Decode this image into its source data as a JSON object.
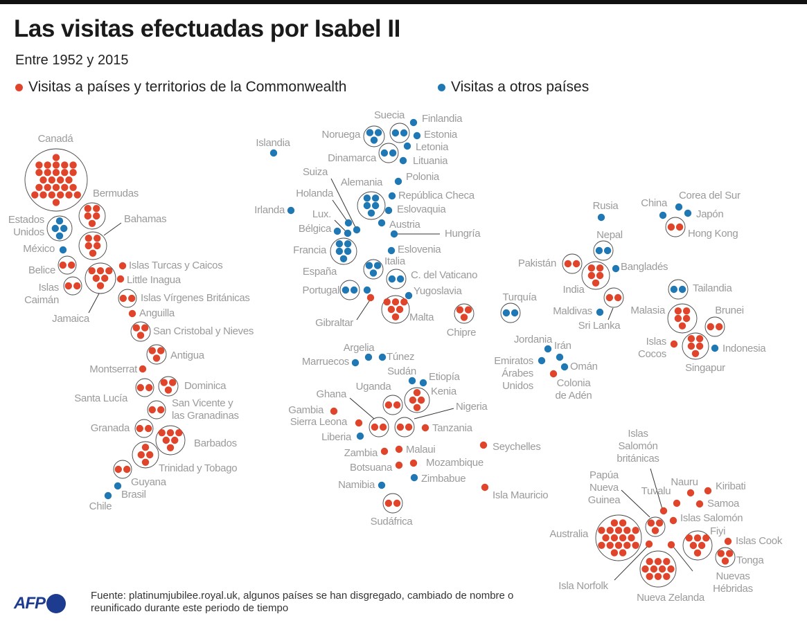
{
  "title": "Las visitas efectuadas por Isabel II",
  "subtitle": "Entre 1952 y 2015",
  "legend": {
    "commonwealth": "Visitas a países y territorios de la Commonwealth",
    "other": "Visitas a otros países"
  },
  "colors": {
    "commonwealth": "#e0452b",
    "other": "#1f78b4"
  },
  "footer": {
    "logo": "AFP",
    "source": "Fuente: platinumjubilee.royal.uk, algunos países se han disgregado, cambiado de nombre o reunificado durante este periodo de tiempo"
  },
  "countries": [
    {
      "name": "Canadá",
      "visits": 27,
      "group": "commonwealth"
    },
    {
      "name": "Bermudas",
      "visits": 5,
      "group": "commonwealth"
    },
    {
      "name": "Estados\nUnidos",
      "visits": 4,
      "group": "other"
    },
    {
      "name": "Bahamas",
      "visits": 5,
      "group": "commonwealth"
    },
    {
      "name": "México",
      "visits": 1,
      "group": "other"
    },
    {
      "name": "Belice",
      "visits": 2,
      "group": "commonwealth"
    },
    {
      "name": "Islas\nCaimán",
      "visits": 2,
      "group": "commonwealth"
    },
    {
      "name": "Jamaica",
      "visits": 6,
      "group": "commonwealth"
    },
    {
      "name": "Islas Turcas y Caicos",
      "visits": 1,
      "group": "commonwealth"
    },
    {
      "name": "Little Inagua",
      "visits": 1,
      "group": "commonwealth"
    },
    {
      "name": "Islas Vírgenes Británicas",
      "visits": 2,
      "group": "commonwealth"
    },
    {
      "name": "Anguilla",
      "visits": 1,
      "group": "commonwealth"
    },
    {
      "name": "San Cristobal y Nieves",
      "visits": 3,
      "group": "commonwealth"
    },
    {
      "name": "Antigua",
      "visits": 3,
      "group": "commonwealth"
    },
    {
      "name": "Montserrat",
      "visits": 1,
      "group": "commonwealth"
    },
    {
      "name": "Santa Lucía",
      "visits": 2,
      "group": "commonwealth"
    },
    {
      "name": "Dominica",
      "visits": 3,
      "group": "commonwealth"
    },
    {
      "name": "San Vicente y\nlas Granadinas",
      "visits": 2,
      "group": "commonwealth"
    },
    {
      "name": "Granada",
      "visits": 2,
      "group": "commonwealth"
    },
    {
      "name": "Barbados",
      "visits": 6,
      "group": "commonwealth"
    },
    {
      "name": "Trinidad y Tobago",
      "visits": 4,
      "group": "commonwealth"
    },
    {
      "name": "Guyana",
      "visits": 2,
      "group": "commonwealth"
    },
    {
      "name": "Brasil",
      "visits": 1,
      "group": "other"
    },
    {
      "name": "Chile",
      "visits": 1,
      "group": "other"
    },
    {
      "name": "Islandia",
      "visits": 1,
      "group": "other"
    },
    {
      "name": "Noruega",
      "visits": 3,
      "group": "other"
    },
    {
      "name": "Suecia",
      "visits": 2,
      "group": "other"
    },
    {
      "name": "Finlandia",
      "visits": 1,
      "group": "other"
    },
    {
      "name": "Estonia",
      "visits": 1,
      "group": "other"
    },
    {
      "name": "Dinamarca",
      "visits": 2,
      "group": "other"
    },
    {
      "name": "Letonia",
      "visits": 1,
      "group": "other"
    },
    {
      "name": "Lituania",
      "visits": 1,
      "group": "other"
    },
    {
      "name": "Polonia",
      "visits": 1,
      "group": "other"
    },
    {
      "name": "Alemania",
      "visits": 5,
      "group": "other"
    },
    {
      "name": "República Checa",
      "visits": 1,
      "group": "other"
    },
    {
      "name": "Eslovaquia",
      "visits": 1,
      "group": "other"
    },
    {
      "name": "Austria",
      "visits": 1,
      "group": "other"
    },
    {
      "name": "Hungría",
      "visits": 1,
      "group": "other"
    },
    {
      "name": "Irlanda",
      "visits": 1,
      "group": "other"
    },
    {
      "name": "Holanda",
      "visits": 1,
      "group": "other"
    },
    {
      "name": "Suiza",
      "visits": 1,
      "group": "other"
    },
    {
      "name": "Lux.",
      "visits": 1,
      "group": "other"
    },
    {
      "name": "Bélgica",
      "visits": 1,
      "group": "other"
    },
    {
      "name": "Francia",
      "visits": 5,
      "group": "other"
    },
    {
      "name": "Eslovenia",
      "visits": 1,
      "group": "other"
    },
    {
      "name": "Italia",
      "visits": 3,
      "group": "other"
    },
    {
      "name": "España",
      "visits": 1,
      "group": "other"
    },
    {
      "name": "C. del Vaticano",
      "visits": 2,
      "group": "other"
    },
    {
      "name": "Portugal",
      "visits": 2,
      "group": "other"
    },
    {
      "name": "Gibraltar",
      "visits": 1,
      "group": "commonwealth"
    },
    {
      "name": "Yugoslavia",
      "visits": 1,
      "group": "other"
    },
    {
      "name": "Malta",
      "visits": 6,
      "group": "commonwealth"
    },
    {
      "name": "Chipre",
      "visits": 3,
      "group": "commonwealth"
    },
    {
      "name": "Turquía",
      "visits": 2,
      "group": "other"
    },
    {
      "name": "Rusia",
      "visits": 1,
      "group": "other"
    },
    {
      "name": "China",
      "visits": 1,
      "group": "other"
    },
    {
      "name": "Corea del Sur",
      "visits": 1,
      "group": "other"
    },
    {
      "name": "Japón",
      "visits": 1,
      "group": "other"
    },
    {
      "name": "Hong Kong",
      "visits": 2,
      "group": "commonwealth"
    },
    {
      "name": "Nepal",
      "visits": 2,
      "group": "other"
    },
    {
      "name": "Pakistán",
      "visits": 2,
      "group": "commonwealth"
    },
    {
      "name": "India",
      "visits": 5,
      "group": "commonwealth"
    },
    {
      "name": "Bangladés",
      "visits": 1,
      "group": "other"
    },
    {
      "name": "Sri Lanka",
      "visits": 2,
      "group": "commonwealth"
    },
    {
      "name": "Maldivas",
      "visits": 1,
      "group": "other"
    },
    {
      "name": "Tailandia",
      "visits": 2,
      "group": "other"
    },
    {
      "name": "Malasia",
      "visits": 5,
      "group": "commonwealth"
    },
    {
      "name": "Brunei",
      "visits": 2,
      "group": "commonwealth"
    },
    {
      "name": "Singapur",
      "visits": 5,
      "group": "commonwealth"
    },
    {
      "name": "Islas\nCocos",
      "visits": 1,
      "group": "commonwealth"
    },
    {
      "name": "Indonesia",
      "visits": 1,
      "group": "other"
    },
    {
      "name": "Jordania",
      "visits": 1,
      "group": "other"
    },
    {
      "name": "Irán",
      "visits": 1,
      "group": "other"
    },
    {
      "name": "Emiratos\nÁrabes\nUnidos",
      "visits": 1,
      "group": "other"
    },
    {
      "name": "Omán",
      "visits": 1,
      "group": "other"
    },
    {
      "name": "Colonia\nde Adén",
      "visits": 1,
      "group": "commonwealth"
    },
    {
      "name": "Argelia",
      "visits": 1,
      "group": "other"
    },
    {
      "name": "Marruecos",
      "visits": 1,
      "group": "other"
    },
    {
      "name": "Túnez",
      "visits": 1,
      "group": "other"
    },
    {
      "name": "Sudán",
      "visits": 1,
      "group": "other"
    },
    {
      "name": "Etiopía",
      "visits": 1,
      "group": "other"
    },
    {
      "name": "Uganda",
      "visits": 2,
      "group": "commonwealth"
    },
    {
      "name": "Kenia",
      "visits": 4,
      "group": "commonwealth"
    },
    {
      "name": "Ghana",
      "visits": 2,
      "group": "commonwealth"
    },
    {
      "name": "Nigeria",
      "visits": 2,
      "group": "commonwealth"
    },
    {
      "name": "Gambia",
      "visits": 1,
      "group": "commonwealth"
    },
    {
      "name": "Sierra Leona",
      "visits": 1,
      "group": "commonwealth"
    },
    {
      "name": "Liberia",
      "visits": 1,
      "group": "other"
    },
    {
      "name": "Tanzania",
      "visits": 1,
      "group": "commonwealth"
    },
    {
      "name": "Zambia",
      "visits": 1,
      "group": "commonwealth"
    },
    {
      "name": "Malaui",
      "visits": 1,
      "group": "commonwealth"
    },
    {
      "name": "Botsuana",
      "visits": 1,
      "group": "commonwealth"
    },
    {
      "name": "Mozambique",
      "visits": 1,
      "group": "commonwealth"
    },
    {
      "name": "Zimbabue",
      "visits": 1,
      "group": "other"
    },
    {
      "name": "Namibia",
      "visits": 1,
      "group": "other"
    },
    {
      "name": "Sudáfrica",
      "visits": 2,
      "group": "commonwealth"
    },
    {
      "name": "Seychelles",
      "visits": 1,
      "group": "commonwealth"
    },
    {
      "name": "Isla Mauricio",
      "visits": 1,
      "group": "commonwealth"
    },
    {
      "name": "Australia",
      "visits": 18,
      "group": "commonwealth"
    },
    {
      "name": "Papúa\nNueva\nGuinea",
      "visits": 3,
      "group": "commonwealth"
    },
    {
      "name": "Islas\nSalomón\nbritánicas",
      "visits": 1,
      "group": "commonwealth"
    },
    {
      "name": "Tuvalu",
      "visits": 1,
      "group": "commonwealth"
    },
    {
      "name": "Nauru",
      "visits": 1,
      "group": "commonwealth"
    },
    {
      "name": "Kiribati",
      "visits": 1,
      "group": "commonwealth"
    },
    {
      "name": "Samoa",
      "visits": 1,
      "group": "commonwealth"
    },
    {
      "name": "Islas Salomón",
      "visits": 1,
      "group": "commonwealth"
    },
    {
      "name": "Fiyi",
      "visits": 6,
      "group": "commonwealth"
    },
    {
      "name": "Islas Cook",
      "visits": 1,
      "group": "commonwealth"
    },
    {
      "name": "Tonga",
      "visits": 3,
      "group": "commonwealth"
    },
    {
      "name": "Isla Norfolk",
      "visits": 1,
      "group": "commonwealth"
    },
    {
      "name": "Nueva Zelanda",
      "visits": 10,
      "group": "commonwealth"
    },
    {
      "name": "Nuevas Hébridas",
      "visits": 1,
      "group": "commonwealth"
    }
  ]
}
